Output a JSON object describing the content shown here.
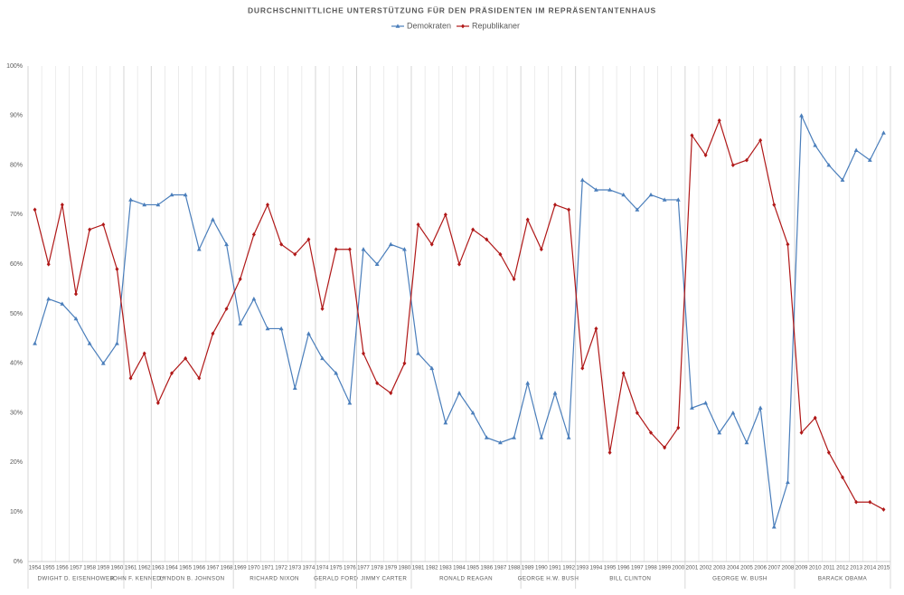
{
  "chart_data": {
    "type": "line",
    "title": "DURCHSCHNITTLICHE UNTERSTÜTZUNG FÜR DEN PRÄSIDENTEN IM REPRÄSENTANTENHAUS",
    "categories": [
      "1954",
      "1955",
      "1956",
      "1957",
      "1958",
      "1959",
      "1960",
      "1961",
      "1962",
      "1963",
      "1964",
      "1965",
      "1966",
      "1967",
      "1968",
      "1969",
      "1970",
      "1971",
      "1972",
      "1973",
      "1974",
      "1974",
      "1975",
      "1976",
      "1977",
      "1978",
      "1979",
      "1980",
      "1981",
      "1982",
      "1983",
      "1984",
      "1985",
      "1986",
      "1987",
      "1988",
      "1989",
      "1990",
      "1991",
      "1992",
      "1993",
      "1994",
      "1995",
      "1996",
      "1997",
      "1998",
      "1999",
      "2000",
      "2001",
      "2002",
      "2003",
      "2004",
      "2005",
      "2006",
      "2007",
      "2008",
      "2009",
      "2010",
      "2011",
      "2012",
      "2013",
      "2014",
      "2015"
    ],
    "groups": [
      "DWIGHT D. EISENHOWER",
      "JOHN F. KENNEDY",
      "LYNDON B. JOHNSON",
      "RICHARD NIXON",
      "GERALD FORD",
      "JIMMY CARTER",
      "RONALD REAGAN",
      "GEORGE H.W. BUSH",
      "BILL CLINTON",
      "GEORGE W. BUSH",
      "BARACK OBAMA"
    ],
    "series": [
      {
        "name": "Demokraten",
        "color": "#4a7ebb",
        "values": [
          44,
          53,
          52,
          49,
          44,
          40,
          44,
          73,
          72,
          72,
          74,
          74,
          63,
          69,
          64,
          48,
          53,
          47,
          47,
          35,
          46,
          41,
          38,
          32,
          63,
          60,
          64,
          63,
          42,
          39,
          28,
          34,
          30,
          25,
          24,
          25,
          36,
          25,
          34,
          25,
          77,
          75,
          75,
          74,
          71,
          74,
          73,
          73,
          31,
          32,
          26,
          30,
          24,
          31,
          7,
          16,
          90,
          84,
          80,
          77,
          83,
          81,
          86.5
        ]
      },
      {
        "name": "Republikaner",
        "color": "#b01818",
        "values": [
          71,
          60,
          72,
          54,
          67,
          68,
          59,
          37,
          42,
          32,
          38,
          41,
          37,
          46,
          51,
          57,
          66,
          72,
          64,
          62,
          65,
          51,
          63,
          63,
          42,
          36,
          34,
          40,
          68,
          64,
          70,
          60,
          67,
          65,
          62,
          57,
          69,
          63,
          72,
          71,
          39,
          47,
          22,
          38,
          30,
          26,
          23,
          27,
          86,
          82,
          89,
          80,
          81,
          85,
          72,
          64,
          26,
          29,
          22,
          17,
          12,
          12,
          10.5
        ]
      }
    ],
    "ylim": [
      0,
      100
    ],
    "yticks": [
      {
        "value": 0,
        "label": "0%"
      },
      {
        "value": 10,
        "label": "10%"
      },
      {
        "value": 20,
        "label": "20%"
      },
      {
        "value": 30,
        "label": "30%"
      },
      {
        "value": 40,
        "label": "40%"
      },
      {
        "value": 50,
        "label": "50%"
      },
      {
        "value": 60,
        "label": "60%"
      },
      {
        "value": 70,
        "label": "70%"
      },
      {
        "value": 80,
        "label": "80%"
      },
      {
        "value": 90,
        "label": "90%"
      },
      {
        "value": 100,
        "label": "100%"
      }
    ],
    "grid": true
  }
}
